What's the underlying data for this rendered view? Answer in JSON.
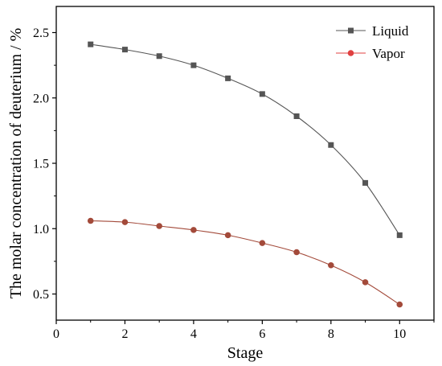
{
  "chart_data": {
    "type": "line",
    "title": "",
    "xlabel": "Stage",
    "ylabel": "The molar concentration of deuterium / %",
    "xlim": [
      0,
      11
    ],
    "ylim": [
      0.3,
      2.7
    ],
    "xticks": [
      0,
      2,
      4,
      6,
      8,
      10
    ],
    "xtick_labels": [
      "0",
      "2",
      "4",
      "6",
      "8",
      "10"
    ],
    "yticks": [
      0.5,
      1.0,
      1.5,
      2.0,
      2.5
    ],
    "ytick_labels": [
      "0.5",
      "1.0",
      "1.5",
      "2.0",
      "2.5"
    ],
    "grid": false,
    "legend_position": "top-right",
    "x": [
      1,
      2,
      3,
      4,
      5,
      6,
      7,
      8,
      9,
      10
    ],
    "series": [
      {
        "name": "Liquid",
        "color": "#555555",
        "marker": "square",
        "values": [
          2.41,
          2.37,
          2.32,
          2.25,
          2.15,
          2.03,
          1.86,
          1.64,
          1.35,
          0.95
        ]
      },
      {
        "name": "Vapor",
        "color": "#a34a3a",
        "legend_color": "#e04040",
        "marker": "circle",
        "values": [
          1.06,
          1.05,
          1.02,
          0.99,
          0.95,
          0.89,
          0.82,
          0.72,
          0.59,
          0.42
        ]
      }
    ]
  }
}
